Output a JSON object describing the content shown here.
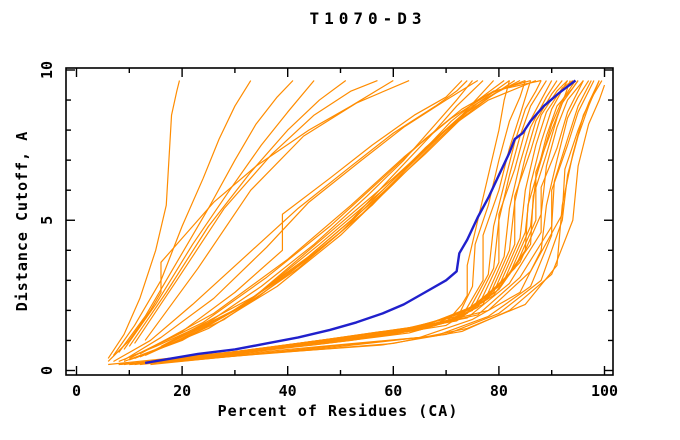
{
  "title": "T1070-D3",
  "chart_data": {
    "type": "line",
    "title": "T1070-D3",
    "xlabel": "Percent of Residues (CA)",
    "ylabel": "Distance Cutoff, A",
    "xlim": [
      0,
      100
    ],
    "ylim": [
      0,
      10
    ],
    "grid": false,
    "legend": "none",
    "x_major_ticks": [
      0,
      20,
      40,
      60,
      80,
      100
    ],
    "x_minor_ticks": [
      10,
      30,
      50,
      70,
      90
    ],
    "x_tick_labels": [
      "0",
      "20",
      "40",
      "60",
      "80",
      "100"
    ],
    "y_major_ticks": [
      0,
      5,
      10
    ],
    "y_minor_ticks": [
      1,
      2,
      3,
      4,
      6,
      7,
      8,
      9
    ],
    "y_tick_labels": [
      "0",
      "5",
      "10"
    ],
    "colors": {
      "models": "#ff8c00",
      "highlight": "#2020cc",
      "axis": "#000000",
      "background": "#ffffff"
    },
    "series": [
      {
        "name": "models",
        "role": "all-predicted-models",
        "color": "#ff8c00",
        "curves": [
          [
            6,
            0.2,
            20,
            0.45,
            40,
            0.8,
            60,
            1.2,
            70,
            1.6,
            73,
            2.2,
            74,
            2.5,
            74,
            3.5,
            76,
            5,
            78,
            6.5,
            80,
            8,
            81,
            9,
            82,
            9.65
          ],
          [
            8,
            0.2,
            25,
            0.5,
            45,
            0.85,
            63,
            1.25,
            72,
            1.7,
            75,
            2.8,
            75.5,
            4.2,
            78,
            5.5,
            80,
            7,
            82,
            8.3,
            84,
            9.1,
            85,
            9.65
          ],
          [
            9,
            0.2,
            28,
            0.55,
            48,
            0.95,
            65,
            1.35,
            73,
            1.8,
            77,
            3,
            77,
            4.5,
            80,
            6,
            82,
            7.4,
            84,
            8.5,
            86,
            9.65
          ],
          [
            10,
            0.2,
            30,
            0.6,
            50,
            1,
            66,
            1.4,
            74,
            1.9,
            78,
            3.2,
            79,
            4.8,
            81,
            6.2,
            83,
            7.6,
            85,
            8.7,
            87,
            9.3,
            88,
            9.65
          ],
          [
            11,
            0.2,
            32,
            0.65,
            52,
            1.05,
            68,
            1.5,
            75,
            2,
            79,
            3.4,
            80,
            5,
            82,
            6.5,
            84,
            7.8,
            86,
            8.8,
            89,
            9.65
          ],
          [
            12,
            0.25,
            34,
            0.7,
            54,
            1.1,
            69,
            1.55,
            76,
            2.1,
            80,
            3.6,
            80,
            5.2,
            83,
            6.7,
            85,
            8,
            88,
            9,
            90,
            9.65
          ],
          [
            13,
            0.25,
            36,
            0.75,
            56,
            1.15,
            70,
            1.6,
            77,
            2.2,
            81,
            3.8,
            82,
            5.4,
            84,
            6.9,
            86,
            8.1,
            89,
            9.1,
            91,
            9.65
          ],
          [
            14,
            0.25,
            38,
            0.8,
            58,
            1.2,
            71,
            1.7,
            78,
            2.4,
            82,
            4,
            83,
            5.6,
            85,
            7.1,
            87,
            8.3,
            90,
            9.2,
            92,
            9.65
          ],
          [
            15,
            0.3,
            40,
            0.85,
            60,
            1.3,
            72,
            1.8,
            79,
            2.6,
            83,
            4.2,
            83,
            5.8,
            86,
            7.3,
            88,
            8.5,
            91,
            9.3,
            93,
            9.65
          ],
          [
            16,
            0.3,
            42,
            0.9,
            62,
            1.35,
            73,
            1.9,
            80,
            2.8,
            84,
            4.4,
            85,
            6,
            87,
            7.5,
            89,
            8.6,
            92,
            9.4,
            94,
            9.65
          ],
          [
            17,
            0.3,
            44,
            0.95,
            64,
            1.4,
            74,
            2,
            81,
            3,
            85,
            4.6,
            86,
            6.2,
            88,
            7.6,
            90,
            8.7,
            93,
            9.65
          ],
          [
            18,
            0.35,
            46,
            1,
            65,
            1.45,
            75,
            2.1,
            82,
            3.2,
            86,
            4.8,
            87,
            6.4,
            89,
            7.8,
            91,
            8.8,
            94,
            9.4,
            95,
            9.65
          ],
          [
            19,
            0.35,
            48,
            1.05,
            66,
            1.5,
            76,
            2.2,
            83,
            3.4,
            87,
            5,
            87,
            6.6,
            90,
            8,
            92,
            8.9,
            95,
            9.65
          ],
          [
            20,
            0.35,
            50,
            1.1,
            68,
            1.55,
            77,
            2.3,
            84,
            3.6,
            88,
            5.2,
            89,
            6.8,
            91,
            8.1,
            93,
            9,
            96,
            9.65
          ],
          [
            12,
            0.2,
            40,
            0.7,
            65,
            1.1,
            75,
            1.7,
            84,
            2.6,
            88,
            4,
            89,
            5.5,
            91,
            7,
            93,
            8.4,
            95,
            9.1,
            97,
            9.65
          ],
          [
            14,
            0.2,
            45,
            0.75,
            68,
            1.15,
            78,
            1.8,
            86,
            2.8,
            90,
            4.5,
            90,
            6,
            93,
            7.5,
            95,
            8.6,
            98,
            9.65
          ],
          [
            16,
            0.25,
            50,
            0.8,
            70,
            1.2,
            80,
            1.9,
            88,
            3,
            92,
            5,
            93,
            6.5,
            95,
            7.8,
            97,
            8.8,
            99,
            9.65
          ],
          [
            10,
            0.2,
            35,
            0.55,
            60,
            0.9,
            74,
            1.4,
            85,
            2.2,
            91,
            3.5,
            92,
            5.5,
            94,
            7.2,
            96,
            8.5,
            98,
            9.2,
            99.5,
            9.65
          ],
          [
            8,
            0.2,
            30,
            0.5,
            58,
            0.85,
            73,
            1.3,
            82,
            2,
            90,
            3.2,
            94,
            5,
            95,
            6.8,
            97,
            8.2,
            99,
            9,
            100,
            9.5
          ],
          [
            18,
            0.3,
            52,
            1,
            70,
            1.5,
            79,
            2.5,
            85,
            4,
            85.5,
            5.5,
            88,
            7,
            90,
            8.2,
            92,
            9,
            94.5,
            9.65
          ],
          [
            20,
            0.4,
            55,
            1.15,
            72,
            1.65,
            80,
            2.7,
            86,
            4.2,
            86.5,
            5.8,
            89,
            7.2,
            91,
            8.4,
            93.5,
            9.65
          ],
          [
            22,
            0.4,
            58,
            1.2,
            74,
            1.75,
            82,
            2.9,
            88,
            4.6,
            88,
            6.1,
            91,
            7.4,
            93,
            8.6,
            96,
            9.65
          ],
          [
            24,
            0.45,
            60,
            1.25,
            76,
            1.85,
            84,
            3.1,
            90,
            4.8,
            90.5,
            6.3,
            93,
            7.7,
            95,
            8.8,
            97.5,
            9.65
          ],
          [
            26,
            0.5,
            62,
            1.3,
            78,
            2,
            86,
            3.3,
            92,
            5.2,
            92.5,
            6.7,
            95,
            8,
            97,
            8.9,
            99,
            9.65
          ],
          [
            8,
            0.3,
            15,
            0.8,
            25,
            1.6,
            35,
            2.8,
            45,
            4.2,
            55,
            5.8,
            62,
            7,
            68,
            8.2,
            72,
            9,
            75,
            9.65
          ],
          [
            10,
            0.35,
            20,
            1,
            30,
            2,
            42,
            3.5,
            52,
            5,
            60,
            6.5,
            67,
            7.8,
            72,
            8.8,
            77,
            9.65
          ],
          [
            9,
            0.3,
            18,
            0.9,
            28,
            1.8,
            40,
            3.2,
            50,
            4.6,
            58,
            6,
            66,
            7.4,
            73,
            8.5,
            79,
            9.65
          ],
          [
            11,
            0.4,
            22,
            1.2,
            34,
            2.4,
            46,
            4,
            56,
            5.5,
            64,
            7,
            71,
            8.3,
            76,
            9,
            81,
            9.65
          ],
          [
            12,
            0.45,
            25,
            1.4,
            38,
            2.8,
            50,
            4.5,
            60,
            6.2,
            68,
            7.6,
            74,
            8.6,
            80,
            9.3,
            83,
            9.65
          ],
          [
            7,
            0.3,
            14,
            1,
            22,
            2.2,
            32,
            3.8,
            42,
            5.4,
            52,
            6.8,
            60,
            7.9,
            68,
            8.8,
            72,
            9.3,
            74,
            9.65
          ],
          [
            13,
            0.5,
            28,
            1.7,
            42,
            3.4,
            54,
            5.2,
            63,
            6.8,
            70,
            8,
            76,
            8.9,
            82,
            9.65
          ],
          [
            10,
            0.4,
            20,
            1.3,
            30,
            2.6,
            39,
            4,
            39,
            5.2,
            48,
            6.4,
            56,
            7.5,
            64,
            8.5,
            70,
            9.1,
            73,
            9.65
          ],
          [
            14,
            0.6,
            30,
            2,
            44,
            3.8,
            56,
            5.6,
            66,
            7.2,
            73,
            8.4,
            79,
            9.2,
            84,
            9.65
          ],
          [
            9,
            0.35,
            16,
            1.1,
            26,
            2.4,
            36,
            4.1,
            44,
            5.6,
            54,
            7,
            62,
            8.1,
            70,
            9,
            76,
            9.65
          ],
          [
            15,
            0.7,
            32,
            2.2,
            46,
            4.2,
            58,
            6,
            68,
            7.7,
            75,
            8.8,
            81,
            9.4,
            86,
            9.65
          ],
          [
            11,
            0.5,
            24,
            1.6,
            36,
            3.1,
            48,
            4.8,
            58,
            6.4,
            66,
            7.7,
            73,
            8.7,
            78,
            9.2,
            85,
            9.65
          ],
          [
            16,
            0.8,
            34,
            2.5,
            48,
            4.6,
            60,
            6.4,
            70,
            8,
            78,
            9,
            87,
            9.65
          ],
          [
            12,
            0.55,
            26,
            1.9,
            40,
            3.7,
            52,
            5.5,
            62,
            7.1,
            71,
            8.4,
            79,
            9.3,
            88,
            9.65
          ],
          [
            6,
            0.4,
            9,
            1.2,
            12,
            2.4,
            15,
            4,
            17,
            5.5,
            17.5,
            7,
            18,
            8.5,
            19,
            9.3,
            19.5,
            9.65
          ],
          [
            7,
            0.5,
            11,
            1.5,
            16,
            3,
            20,
            4.8,
            24,
            6.4,
            27,
            7.7,
            30,
            8.8,
            33,
            9.65
          ],
          [
            8,
            0.6,
            13,
            1.8,
            19,
            3.6,
            25,
            5.4,
            30,
            7,
            34,
            8.2,
            38,
            9.1,
            41,
            9.65
          ],
          [
            9,
            0.7,
            15,
            2.2,
            22,
            4.2,
            29,
            6,
            35,
            7.5,
            40,
            8.6,
            45,
            9.65
          ],
          [
            10,
            0.8,
            17,
            2.6,
            25,
            4.8,
            33,
            6.6,
            40,
            8,
            46,
            9,
            51,
            9.65
          ],
          [
            11,
            0.9,
            19,
            3,
            28,
            5.4,
            37,
            7.2,
            45,
            8.5,
            52,
            9.3,
            57,
            9.65
          ],
          [
            6,
            0.3,
            10,
            1,
            14,
            2,
            16,
            2.6,
            16,
            3.6,
            20,
            4.4,
            26,
            5.6,
            34,
            6.8,
            44,
            8,
            52,
            8.8,
            60,
            9.65
          ],
          [
            13,
            1,
            23,
            3.4,
            33,
            6,
            43,
            7.8,
            53,
            8.9,
            63,
            9.65
          ]
        ]
      },
      {
        "name": "highlighted-model",
        "role": "selected-model",
        "color": "#2020cc",
        "points": [
          13,
          0.25,
          18,
          0.4,
          23,
          0.55,
          30,
          0.7,
          36,
          0.9,
          42,
          1.1,
          48,
          1.35,
          53,
          1.6,
          58,
          1.9,
          62,
          2.2,
          66,
          2.6,
          70,
          3,
          72,
          3.3,
          72.5,
          3.9,
          74,
          4.35,
          76,
          5.1,
          78,
          5.75,
          80,
          6.5,
          82,
          7.25,
          83,
          7.7,
          84.5,
          7.9,
          86,
          8.3,
          88.5,
          8.8,
          91.5,
          9.25,
          94.5,
          9.65
        ]
      }
    ]
  }
}
